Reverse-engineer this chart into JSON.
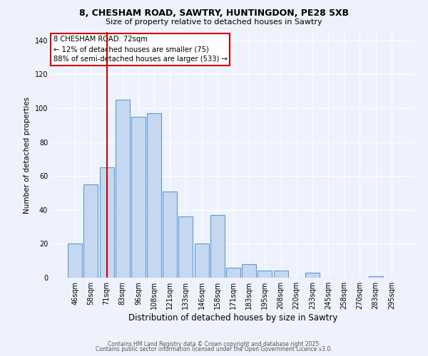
{
  "title": "8, CHESHAM ROAD, SAWTRY, HUNTINGDON, PE28 5XB",
  "subtitle": "Size of property relative to detached houses in Sawtry",
  "xlabel": "Distribution of detached houses by size in Sawtry",
  "ylabel": "Number of detached properties",
  "bar_labels": [
    "46sqm",
    "58sqm",
    "71sqm",
    "83sqm",
    "96sqm",
    "108sqm",
    "121sqm",
    "133sqm",
    "146sqm",
    "158sqm",
    "171sqm",
    "183sqm",
    "195sqm",
    "208sqm",
    "220sqm",
    "233sqm",
    "245sqm",
    "258sqm",
    "270sqm",
    "283sqm",
    "295sqm"
  ],
  "bar_values": [
    20,
    55,
    65,
    105,
    95,
    97,
    51,
    36,
    20,
    37,
    6,
    8,
    4,
    4,
    0,
    3,
    0,
    0,
    0,
    1,
    0
  ],
  "bar_color": "#c5d8f0",
  "bar_edge_color": "#5b9bd5",
  "vline_index": 2,
  "vline_color": "#cc0000",
  "annotation_title": "8 CHESHAM ROAD: 72sqm",
  "annotation_line1": "← 12% of detached houses are smaller (75)",
  "annotation_line2": "88% of semi-detached houses are larger (533) →",
  "annotation_box_color": "#ffffff",
  "annotation_box_edge": "#cc0000",
  "ylim": [
    0,
    145
  ],
  "background_color": "#eef2fc",
  "grid_color": "#ffffff",
  "footer1": "Contains HM Land Registry data © Crown copyright and database right 2025.",
  "footer2": "Contains public sector information licensed under the Open Government Licence v3.0."
}
